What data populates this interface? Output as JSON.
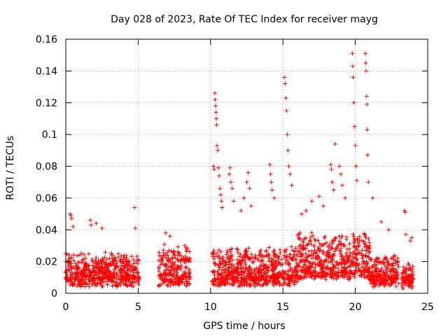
{
  "chart_data": {
    "type": "scatter",
    "title": "Day 028 of 2023, Rate Of TEC Index for receiver mayg",
    "xlabel": "GPS time / hours",
    "ylabel": "ROTI / TECUs",
    "xlim": [
      0,
      25
    ],
    "ylim": [
      0,
      0.16
    ],
    "x_ticks": [
      0,
      5,
      10,
      15,
      20,
      25
    ],
    "y_ticks": [
      0,
      0.02,
      0.04,
      0.06,
      0.08,
      0.1,
      0.12,
      0.14,
      0.16
    ],
    "x_tick_labels": [
      "0",
      "5",
      "10",
      "15",
      "20",
      "25"
    ],
    "y_tick_labels": [
      "0",
      "0.02",
      "0.04",
      "0.06",
      "0.08",
      "0.1",
      "0.12",
      "0.14",
      "0.16"
    ],
    "grid": true,
    "marker": "+",
    "color": "#ff0000",
    "series": [
      {
        "name": "ROTI",
        "segments": [
          {
            "start": 0.0,
            "end": 5.1,
            "base": 0.012,
            "spread": 0.016
          },
          {
            "start": 6.4,
            "end": 8.6,
            "base": 0.012,
            "spread": 0.022
          },
          {
            "start": 10.1,
            "end": 16.0,
            "base": 0.012,
            "spread": 0.02
          },
          {
            "start": 16.0,
            "end": 21.0,
            "base": 0.016,
            "spread": 0.026
          },
          {
            "start": 21.0,
            "end": 23.0,
            "base": 0.012,
            "spread": 0.016
          },
          {
            "start": 23.2,
            "end": 24.0,
            "base": 0.01,
            "spread": 0.012
          }
        ],
        "outliers": [
          [
            0.3,
            0.05
          ],
          [
            0.35,
            0.049
          ],
          [
            0.4,
            0.047
          ],
          [
            0.5,
            0.042
          ],
          [
            1.7,
            0.046
          ],
          [
            1.75,
            0.043
          ],
          [
            2.1,
            0.044
          ],
          [
            2.5,
            0.041
          ],
          [
            4.75,
            0.054
          ],
          [
            4.8,
            0.041
          ],
          [
            6.9,
            0.038
          ],
          [
            7.2,
            0.036
          ],
          [
            10.2,
            0.08
          ],
          [
            10.25,
            0.078
          ],
          [
            10.3,
            0.126
          ],
          [
            10.32,
            0.122
          ],
          [
            10.35,
            0.118
          ],
          [
            10.38,
            0.114
          ],
          [
            10.4,
            0.11
          ],
          [
            10.42,
            0.106
          ],
          [
            10.45,
            0.093
          ],
          [
            10.5,
            0.09
          ],
          [
            10.55,
            0.079
          ],
          [
            10.6,
            0.074
          ],
          [
            10.65,
            0.066
          ],
          [
            10.7,
            0.062
          ],
          [
            10.75,
            0.058
          ],
          [
            10.8,
            0.054
          ],
          [
            11.3,
            0.075
          ],
          [
            11.35,
            0.079
          ],
          [
            11.4,
            0.07
          ],
          [
            11.5,
            0.066
          ],
          [
            11.6,
            0.058
          ],
          [
            12.1,
            0.052
          ],
          [
            12.3,
            0.06
          ],
          [
            12.5,
            0.07
          ],
          [
            12.6,
            0.076
          ],
          [
            12.7,
            0.066
          ],
          [
            12.8,
            0.055
          ],
          [
            14.1,
            0.081
          ],
          [
            14.15,
            0.075
          ],
          [
            14.2,
            0.07
          ],
          [
            14.25,
            0.065
          ],
          [
            14.4,
            0.06
          ],
          [
            15.1,
            0.136
          ],
          [
            15.15,
            0.132
          ],
          [
            15.2,
            0.123
          ],
          [
            15.25,
            0.115
          ],
          [
            15.3,
            0.1
          ],
          [
            15.35,
            0.09
          ],
          [
            15.4,
            0.08
          ],
          [
            15.5,
            0.075
          ],
          [
            15.6,
            0.068
          ],
          [
            16.3,
            0.05
          ],
          [
            16.6,
            0.052
          ],
          [
            17.0,
            0.058
          ],
          [
            17.5,
            0.061
          ],
          [
            17.8,
            0.055
          ],
          [
            18.3,
            0.081
          ],
          [
            18.35,
            0.078
          ],
          [
            18.4,
            0.07
          ],
          [
            18.5,
            0.065
          ],
          [
            18.6,
            0.094
          ],
          [
            18.9,
            0.08
          ],
          [
            19.0,
            0.075
          ],
          [
            19.1,
            0.068
          ],
          [
            19.3,
            0.06
          ],
          [
            19.8,
            0.151
          ],
          [
            19.82,
            0.143
          ],
          [
            19.85,
            0.136
          ],
          [
            19.9,
            0.12
          ],
          [
            19.95,
            0.105
          ],
          [
            20.0,
            0.093
          ],
          [
            20.05,
            0.08
          ],
          [
            20.1,
            0.071
          ],
          [
            20.7,
            0.151
          ],
          [
            20.72,
            0.145
          ],
          [
            20.75,
            0.14
          ],
          [
            20.78,
            0.124
          ],
          [
            20.8,
            0.119
          ],
          [
            20.82,
            0.103
          ],
          [
            20.85,
            0.087
          ],
          [
            20.9,
            0.07
          ],
          [
            21.2,
            0.06
          ],
          [
            21.8,
            0.045
          ],
          [
            22.3,
            0.04
          ],
          [
            23.4,
            0.052
          ],
          [
            23.45,
            0.051
          ],
          [
            23.5,
            0.037
          ],
          [
            23.8,
            0.033
          ],
          [
            23.9,
            0.035
          ]
        ]
      }
    ]
  }
}
